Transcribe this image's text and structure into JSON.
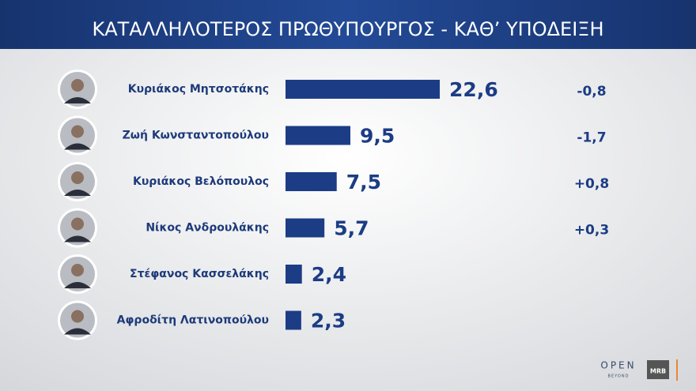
{
  "chart_data": {
    "type": "bar",
    "orientation": "horizontal",
    "title": "ΚΑΤΑΛΛΗΛΟΤΕΡΟΣ  ΠΡΩΘΥΠΟΥΡΓΟΣ - ΚΑΘ’ ΥΠΟΔΕΙΞΗ",
    "categories": [
      "Κυριάκος Μητσοτάκης",
      "Ζωή Κωνσταντοπούλου",
      "Κυριάκος Βελόπουλος",
      "Νίκος Ανδρουλάκης",
      "Στέφανος Κασσελάκης",
      "Αφροδίτη Λατινοπούλου"
    ],
    "values": [
      22.6,
      9.5,
      7.5,
      5.7,
      2.4,
      2.3
    ],
    "value_labels": [
      "22,6",
      "9,5",
      "7,5",
      "5,7",
      "2,4",
      "2,3"
    ],
    "color": "#1c3c85",
    "changes": {
      "values": [
        -0.8,
        -1.7,
        0.8,
        0.3,
        null,
        null
      ],
      "value_labels": [
        "-0,8",
        "-1,7",
        "+0,8",
        "+0,3",
        null,
        null
      ]
    },
    "brand": {
      "channel": "OPEN",
      "tagline": "BEYOND",
      "pollster": "MRB"
    }
  }
}
